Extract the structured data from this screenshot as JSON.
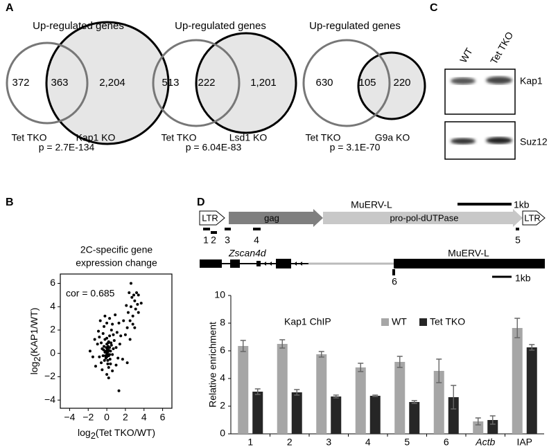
{
  "panel_labels": [
    "A",
    "B",
    "C",
    "D"
  ],
  "venn": [
    {
      "title": "Up-regulated genes",
      "counts": [
        "372",
        "363",
        "2,204"
      ],
      "sets": [
        "Tet TKO",
        "Kap1 KO"
      ],
      "p": "p = 2.7E-134"
    },
    {
      "title": "Up-regulated genes",
      "counts": [
        "513",
        "222",
        "1,201"
      ],
      "sets": [
        "Tet TKO",
        "Lsd1 KO"
      ],
      "p": "p = 6.04E-83"
    },
    {
      "title": "Up-regulated genes",
      "counts": [
        "630",
        "105",
        "220"
      ],
      "sets": [
        "Tet TKO",
        "G9a KO"
      ],
      "p": "p = 3.1E-70"
    }
  ],
  "blot": {
    "lanes": [
      "WT",
      "Tet TKO"
    ],
    "proteins": [
      "Kap1",
      "Suz12"
    ]
  },
  "diagram": {
    "element": "MuERV-L",
    "ltr": "LTR",
    "gag": "gag",
    "pol": "pro-pol-dUTPase",
    "scale": "1kb",
    "primers": [
      "1",
      "2",
      "3",
      "4",
      "5"
    ],
    "gene": "Zscan4d",
    "element2": "MuERV-L",
    "primer6": "6",
    "scale2": "1kb"
  },
  "chart_data": [
    {
      "type": "scatter",
      "title": [
        "2C-specific gene",
        "expression change"
      ],
      "x_label": {
        "base": "log",
        "sub": "2",
        "rest": "(Tet TKO/WT)"
      },
      "y_label": {
        "base": "log",
        "sub": "2",
        "rest": "(KAP1/WT)"
      },
      "annotation": "cor = 0.685",
      "color": "#000000",
      "xlim": [
        -5.0,
        7.0
      ],
      "ylim": [
        -4.7,
        6.8
      ],
      "xticks": [
        {
          "value": -4,
          "label": "−4"
        },
        {
          "value": -2,
          "label": "−2"
        },
        0,
        2,
        4,
        6
      ],
      "yticks": [
        {
          "value": -4,
          "label": "−4"
        },
        {
          "value": -2,
          "label": "−2"
        },
        0,
        2,
        4,
        6
      ],
      "x": [
        0,
        0.1,
        -0.2,
        0.2,
        0.3,
        -0.1,
        0.0,
        0.2,
        -0.3,
        0.4,
        0.1,
        -0.4,
        0.5,
        0.0,
        0.3,
        -0.2,
        0.6,
        -0.5,
        0.1,
        0.2,
        -0.1,
        0.05,
        0.15,
        -0.25,
        0.35,
        0.45,
        -0.6,
        0.7,
        -0.8,
        0.8,
        1.0,
        -1.0,
        1.1,
        -0.9,
        0.5,
        -0.3,
        0.0,
        -1.2,
        -1.5,
        -1.8,
        -1.3,
        -0.7,
        -0.2,
        0.3,
        0.6,
        1.2,
        1.0,
        0.6,
        -0.5,
        0.0,
        0.2,
        0.4,
        -0.6,
        1.4,
        1.5,
        1.3,
        0.9,
        -0.4,
        0.7,
        -0.8,
        1.3,
        0.1,
        -0.05,
        0.25,
        -0.15,
        0.05,
        0.3,
        -0.35,
        0.0,
        0.15,
        2.0,
        2.2,
        2.5,
        2.3,
        2.6,
        2.8,
        3.0,
        3.1,
        2.7,
        2.9,
        3.2,
        3.4,
        2.4,
        2.6,
        3.3,
        3.7,
        1.8,
        2.1,
        2.5,
        3.0,
        1.7,
        2.2,
        3.4,
        2.8
      ],
      "y": [
        0,
        0.3,
        0.1,
        -0.2,
        0.5,
        -0.4,
        0.8,
        1.0,
        0.6,
        0.2,
        -0.6,
        -0.2,
        0.7,
        1.3,
        1.5,
        1.2,
        -0.1,
        0.4,
        -0.9,
        -1.2,
        0.2,
        -0.1,
        0.6,
        -0.6,
        -0.5,
        0.9,
        0.9,
        0.4,
        -0.3,
        1.1,
        0.5,
        0.8,
        1.8,
        1.9,
        2.0,
        2.3,
        2.6,
        -1.1,
        -0.3,
        0.2,
        1.2,
        2.8,
        3.2,
        3.0,
        2.5,
        -0.4,
        -1.0,
        -1.5,
        -1.4,
        -1.8,
        -2.1,
        -0.9,
        -0.8,
        0.8,
        1.5,
        2.6,
        3.3,
        1.7,
        1.6,
        1.4,
        -3.2,
        0.1,
        0.5,
        0.25,
        -0.2,
        0.4,
        -0.1,
        0.3,
        -0.3,
        0.9,
        1.6,
        2.2,
        2.8,
        3.5,
        4.0,
        3.2,
        4.5,
        3.8,
        4.8,
        5.0,
        5.2,
        5.0,
        5.2,
        6.0,
        4.2,
        4.3,
        2.8,
        4.1,
        1.2,
        2.2,
        -0.5,
        -0.8,
        3.5,
        2.5
      ]
    },
    {
      "type": "bar",
      "y_label": "Relative enrichment",
      "legend_title": "Kap1 ChIP",
      "categories": [
        "1",
        "2",
        "3",
        "4",
        "5",
        "6",
        "Actb",
        "IAP"
      ],
      "category_styles": [
        "normal",
        "normal",
        "normal",
        "normal",
        "normal",
        "normal",
        "italic",
        "normal"
      ],
      "ylim": [
        0,
        10
      ],
      "yticks": [
        0,
        2,
        4,
        6,
        8,
        10
      ],
      "series": [
        {
          "name": "WT",
          "color": "#a6a6a6",
          "values": [
            6.35,
            6.5,
            5.75,
            4.8,
            5.2,
            4.55,
            0.9,
            7.65
          ],
          "errors": [
            0.4,
            0.3,
            0.2,
            0.3,
            0.4,
            0.85,
            0.25,
            0.7
          ]
        },
        {
          "name": "Tet TKO",
          "color": "#262626",
          "values": [
            3.05,
            3.0,
            2.7,
            2.75,
            2.3,
            2.65,
            1.0,
            6.25
          ],
          "errors": [
            0.2,
            0.2,
            0.1,
            0.05,
            0.1,
            0.85,
            0.3,
            0.2
          ]
        }
      ]
    }
  ]
}
